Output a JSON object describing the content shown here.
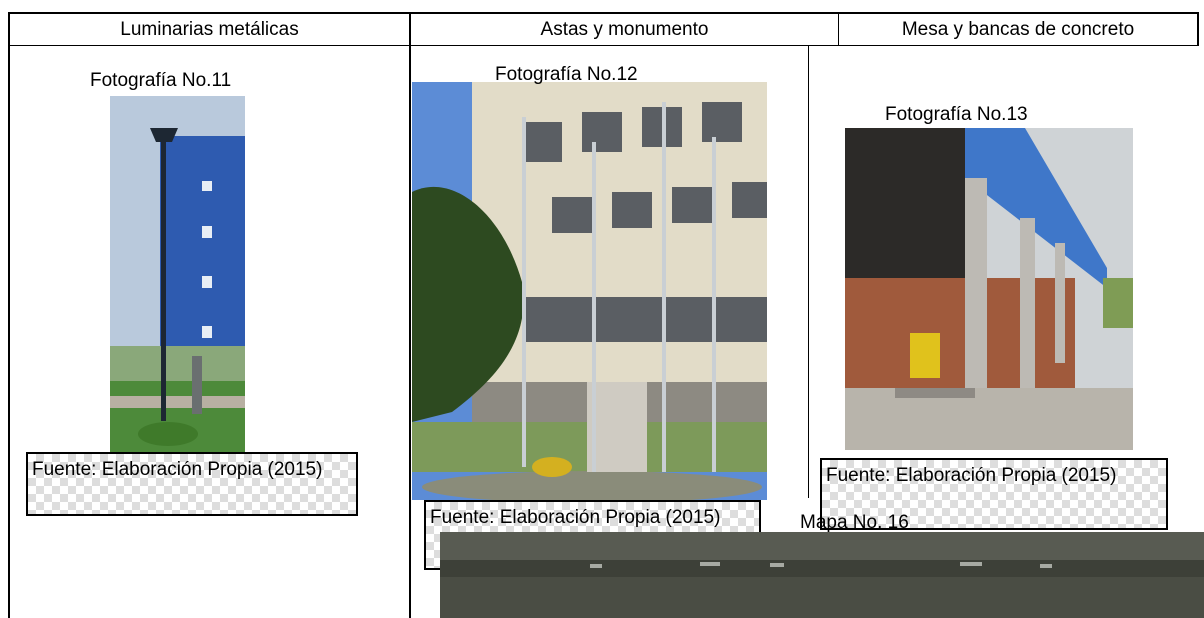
{
  "table": {
    "headers": [
      "Luminarias metálicas",
      "Astas y monumento",
      "Mesa y bancas de concreto"
    ],
    "cells": [
      {
        "caption": "Fotografía No.11",
        "source": "Fuente: Elaboración Propia (2015)"
      },
      {
        "caption": "Fotografía No.12",
        "source": "Fuente: Elaboración Propia (2015)"
      },
      {
        "caption": "Fotografía No.13",
        "source": "Fuente: Elaboración Propia (2015)"
      }
    ]
  },
  "map": {
    "label": "Mapa No. 16"
  }
}
